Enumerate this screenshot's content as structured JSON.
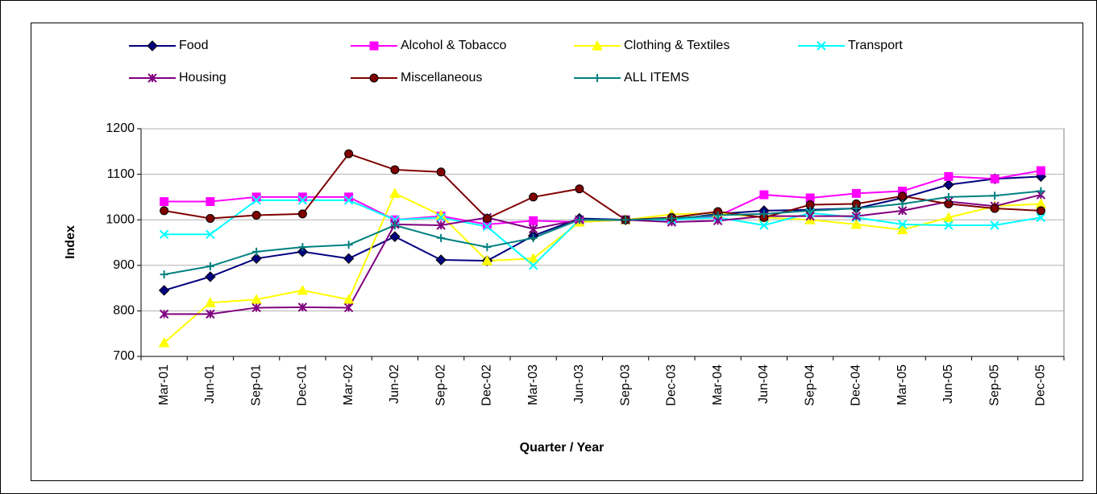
{
  "chart_data": {
    "type": "line",
    "xlabel": "Quarter / Year",
    "ylabel": "Index",
    "categories": [
      "Mar-01",
      "Jun-01",
      "Sep-01",
      "Dec-01",
      "Mar-02",
      "Jun-02",
      "Sep-02",
      "Dec-02",
      "Mar-03",
      "Jun-03",
      "Sep-03",
      "Dec-03",
      "Mar-04",
      "Jun-04",
      "Sep-04",
      "Dec-04",
      "Mar-05",
      "Jun-05",
      "Sep-05",
      "Dec-05"
    ],
    "ylim": [
      700,
      1200
    ],
    "yticks": [
      700,
      800,
      900,
      1000,
      1100,
      1200
    ],
    "grid": true,
    "legend": "top",
    "series": [
      {
        "name": "Food",
        "color": "#000080",
        "marker": "diamond",
        "values": [
          845,
          875,
          915,
          930,
          915,
          963,
          912,
          910,
          965,
          1003,
          1000,
          1000,
          1013,
          1020,
          1022,
          1025,
          1048,
          1077,
          1090,
          1095
        ]
      },
      {
        "name": "Alcohol & Tobacco",
        "color": "#ff00ff",
        "marker": "square",
        "values": [
          1040,
          1040,
          1050,
          1050,
          1050,
          1000,
          1008,
          990,
          998,
          995,
          1000,
          1000,
          1008,
          1055,
          1048,
          1058,
          1063,
          1095,
          1090,
          1108
        ]
      },
      {
        "name": "Clothing & Textiles",
        "color": "#ffff00",
        "marker": "triangle",
        "values": [
          730,
          818,
          825,
          845,
          825,
          1058,
          1010,
          910,
          915,
          995,
          1000,
          1012,
          1015,
          1005,
          1000,
          990,
          978,
          1005,
          1030,
          1035
        ]
      },
      {
        "name": "Transport",
        "color": "#00ffff",
        "marker": "x",
        "values": [
          968,
          968,
          1043,
          1043,
          1043,
          1000,
          1005,
          985,
          900,
          1000,
          1000,
          1000,
          1005,
          988,
          1015,
          1005,
          990,
          988,
          988,
          1005
        ]
      },
      {
        "name": "Housing",
        "color": "#800080",
        "marker": "star",
        "values": [
          793,
          793,
          807,
          808,
          807,
          990,
          988,
          1005,
          980,
          1000,
          1000,
          995,
          998,
          1008,
          1008,
          1008,
          1020,
          1040,
          1030,
          1055
        ]
      },
      {
        "name": "Miscellaneous",
        "color": "#800000",
        "marker": "circle",
        "values": [
          1020,
          1003,
          1010,
          1013,
          1145,
          1110,
          1105,
          1003,
          1050,
          1068,
          1000,
          1005,
          1018,
          1005,
          1033,
          1035,
          1052,
          1035,
          1025,
          1020
        ]
      },
      {
        "name": "ALL ITEMS",
        "color": "#008080",
        "marker": "plus",
        "values": [
          880,
          898,
          930,
          940,
          945,
          988,
          960,
          940,
          960,
          1000,
          1000,
          1003,
          1010,
          1013,
          1020,
          1025,
          1035,
          1050,
          1053,
          1063
        ]
      }
    ]
  }
}
